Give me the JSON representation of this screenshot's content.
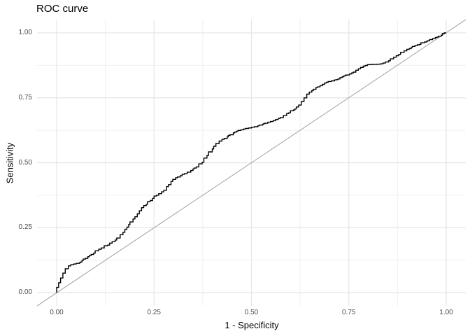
{
  "chart_data": {
    "type": "line",
    "title": "ROC curve",
    "xlabel": "1 - Specificity",
    "ylabel": "Sensitivity",
    "xlim": [
      0,
      1
    ],
    "ylim": [
      0,
      1
    ],
    "grid": "major+minor",
    "legend": "none",
    "x_ticks": {
      "values": [
        0,
        0.25,
        0.5,
        0.75,
        1
      ],
      "labels": [
        "0.00",
        "0.25",
        "0.50",
        "0.75",
        "1.00"
      ]
    },
    "y_ticks": {
      "values": [
        0,
        0.25,
        0.5,
        0.75,
        1
      ],
      "labels": [
        "0.00",
        "0.25",
        "0.50",
        "0.75",
        "1.00"
      ]
    },
    "minor_grid_values": [
      0.125,
      0.375,
      0.625,
      0.875
    ],
    "series": [
      {
        "name": "roc-curve",
        "style": "step",
        "color": "#000000",
        "width": 1.4,
        "points": [
          [
            0.0,
            0.0
          ],
          [
            0.005,
            0.02
          ],
          [
            0.01,
            0.038
          ],
          [
            0.016,
            0.056
          ],
          [
            0.022,
            0.075
          ],
          [
            0.03,
            0.092
          ],
          [
            0.036,
            0.103
          ],
          [
            0.05,
            0.11
          ],
          [
            0.065,
            0.118
          ],
          [
            0.08,
            0.132
          ],
          [
            0.095,
            0.147
          ],
          [
            0.108,
            0.161
          ],
          [
            0.122,
            0.172
          ],
          [
            0.136,
            0.183
          ],
          [
            0.15,
            0.196
          ],
          [
            0.163,
            0.21
          ],
          [
            0.175,
            0.232
          ],
          [
            0.185,
            0.252
          ],
          [
            0.196,
            0.272
          ],
          [
            0.207,
            0.292
          ],
          [
            0.218,
            0.315
          ],
          [
            0.23,
            0.335
          ],
          [
            0.24,
            0.35
          ],
          [
            0.25,
            0.363
          ],
          [
            0.262,
            0.375
          ],
          [
            0.275,
            0.388
          ],
          [
            0.287,
            0.408
          ],
          [
            0.298,
            0.428
          ],
          [
            0.31,
            0.442
          ],
          [
            0.322,
            0.45
          ],
          [
            0.335,
            0.458
          ],
          [
            0.35,
            0.47
          ],
          [
            0.365,
            0.484
          ],
          [
            0.378,
            0.502
          ],
          [
            0.39,
            0.528
          ],
          [
            0.403,
            0.553
          ],
          [
            0.417,
            0.574
          ],
          [
            0.43,
            0.59
          ],
          [
            0.445,
            0.605
          ],
          [
            0.462,
            0.618
          ],
          [
            0.48,
            0.627
          ],
          [
            0.5,
            0.634
          ],
          [
            0.52,
            0.642
          ],
          [
            0.542,
            0.652
          ],
          [
            0.562,
            0.662
          ],
          [
            0.582,
            0.674
          ],
          [
            0.6,
            0.692
          ],
          [
            0.615,
            0.707
          ],
          [
            0.628,
            0.722
          ],
          [
            0.642,
            0.75
          ],
          [
            0.655,
            0.772
          ],
          [
            0.67,
            0.79
          ],
          [
            0.688,
            0.802
          ],
          [
            0.705,
            0.813
          ],
          [
            0.722,
            0.82
          ],
          [
            0.737,
            0.831
          ],
          [
            0.752,
            0.838
          ],
          [
            0.768,
            0.849
          ],
          [
            0.78,
            0.862
          ],
          [
            0.792,
            0.872
          ],
          [
            0.806,
            0.878
          ],
          [
            0.822,
            0.879
          ],
          [
            0.838,
            0.881
          ],
          [
            0.852,
            0.888
          ],
          [
            0.865,
            0.9
          ],
          [
            0.878,
            0.912
          ],
          [
            0.892,
            0.925
          ],
          [
            0.905,
            0.937
          ],
          [
            0.92,
            0.948
          ],
          [
            0.935,
            0.956
          ],
          [
            0.95,
            0.965
          ],
          [
            0.965,
            0.974
          ],
          [
            0.98,
            0.984
          ],
          [
            0.99,
            0.991
          ],
          [
            1.0,
            1.0
          ]
        ]
      },
      {
        "name": "chance-diagonal",
        "style": "straight",
        "color": "#A9A9A9",
        "width": 1.1,
        "points": [
          [
            0,
            0
          ],
          [
            1,
            1
          ]
        ],
        "extends_to_panel_edges": true
      }
    ]
  },
  "colors": {
    "background": "#FFFFFF",
    "grid_major": "#E5E5E5",
    "grid_minor": "#F0F0F0",
    "tick_label": "#4D4D4D",
    "axis_title": "#000000",
    "title": "#000000"
  }
}
